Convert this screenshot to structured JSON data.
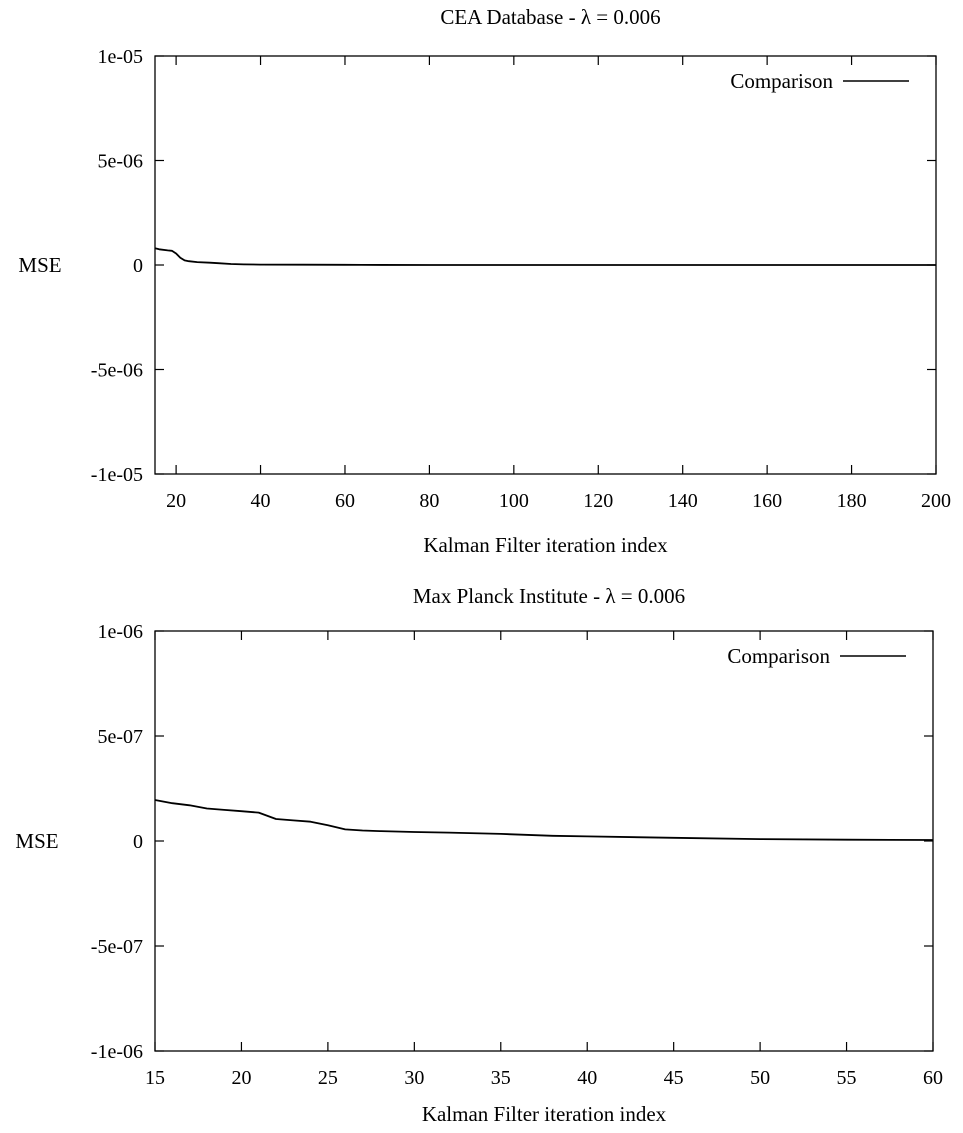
{
  "chart_data": [
    {
      "type": "line",
      "title": "CEA Database - λ = 0.006",
      "xlabel": "Kalman Filter iteration index",
      "ylabel": "MSE",
      "xlim": [
        15,
        200
      ],
      "ylim": [
        -1e-05,
        1e-05
      ],
      "x_ticks": [
        20,
        40,
        60,
        80,
        100,
        120,
        140,
        160,
        180,
        200
      ],
      "x_tick_labels": [
        "20",
        "40",
        "60",
        "80",
        "100",
        "120",
        "140",
        "160",
        "180",
        "200"
      ],
      "y_ticks": [
        -1e-05,
        -5e-06,
        0,
        5e-06,
        1e-05
      ],
      "y_tick_labels": [
        "-1e-05",
        "-5e-06",
        "0",
        "5e-06",
        "1e-05"
      ],
      "grid": false,
      "legend_position": "top-right",
      "series": [
        {
          "name": "Comparison",
          "color": "#000000",
          "x": [
            15,
            16,
            18,
            19,
            20,
            21,
            22,
            23,
            25,
            28,
            30,
            33,
            36,
            40,
            50,
            60,
            64,
            80,
            100,
            150,
            200
          ],
          "y": [
            8e-07,
            7.5e-07,
            7e-07,
            6.8e-07,
            5.5e-07,
            3.5e-07,
            2.2e-07,
            1.8e-07,
            1.4e-07,
            1.1e-07,
            8.5e-08,
            5e-08,
            3e-08,
            2e-08,
            1.2e-08,
            8e-09,
            3e-09,
            2e-09,
            1e-09,
            5e-10,
            2e-10
          ]
        }
      ]
    },
    {
      "type": "line",
      "title": "Max Planck Institute - λ = 0.006",
      "xlabel": "Kalman Filter iteration index",
      "ylabel": "MSE",
      "xlim": [
        15,
        60
      ],
      "ylim": [
        -1e-06,
        1e-06
      ],
      "x_ticks": [
        15,
        20,
        25,
        30,
        35,
        40,
        45,
        50,
        55,
        60
      ],
      "x_tick_labels": [
        "15",
        "20",
        "25",
        "30",
        "35",
        "40",
        "45",
        "50",
        "55",
        "60"
      ],
      "y_ticks": [
        -1e-06,
        -5e-07,
        0,
        5e-07,
        1e-06
      ],
      "y_tick_labels": [
        "-1e-06",
        "-5e-07",
        "0",
        "5e-07",
        "1e-06"
      ],
      "grid": false,
      "legend_position": "top-right",
      "series": [
        {
          "name": "Comparison",
          "color": "#000000",
          "x": [
            15,
            16,
            17,
            18,
            19,
            20,
            21,
            22,
            23,
            24,
            25,
            26,
            27,
            28,
            30,
            32,
            35,
            38,
            40,
            45,
            50,
            55,
            60
          ],
          "y": [
            1.95e-07,
            1.8e-07,
            1.7e-07,
            1.55e-07,
            1.48e-07,
            1.42e-07,
            1.35e-07,
            1.05e-07,
            9.8e-08,
            9.2e-08,
            7.5e-08,
            5.5e-08,
            5e-08,
            4.7e-08,
            4.3e-08,
            4e-08,
            3.4e-08,
            2.5e-08,
            2.2e-08,
            1.5e-08,
            9e-09,
            6e-09,
            5e-09
          ]
        }
      ]
    }
  ]
}
